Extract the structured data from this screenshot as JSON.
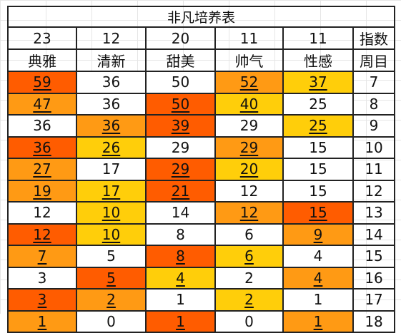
{
  "title": "非凡培养表",
  "colors": {
    "red": "#ff5c00",
    "orange": "#ff9a14",
    "yellow": "#ffce0a",
    "white": "#ffffff"
  },
  "headers": {
    "counts": [
      "23",
      "12",
      "20",
      "11",
      "11"
    ],
    "count_label": "指数",
    "names": [
      "典雅",
      "清新",
      "甜美",
      "帅气",
      "性感"
    ],
    "names_label": "周目"
  },
  "rows": [
    {
      "cells": [
        {
          "v": "59",
          "c": "red",
          "u": true
        },
        {
          "v": "36",
          "c": "white",
          "u": false
        },
        {
          "v": "50",
          "c": "white",
          "u": false
        },
        {
          "v": "52",
          "c": "orange",
          "u": true
        },
        {
          "v": "37",
          "c": "yellow",
          "u": true
        }
      ],
      "week": "7"
    },
    {
      "cells": [
        {
          "v": "47",
          "c": "orange",
          "u": true
        },
        {
          "v": "36",
          "c": "white",
          "u": false
        },
        {
          "v": "50",
          "c": "red",
          "u": true
        },
        {
          "v": "40",
          "c": "yellow",
          "u": true
        },
        {
          "v": "25",
          "c": "white",
          "u": false
        }
      ],
      "week": "8"
    },
    {
      "cells": [
        {
          "v": "36",
          "c": "white",
          "u": false
        },
        {
          "v": "36",
          "c": "orange",
          "u": true
        },
        {
          "v": "39",
          "c": "red",
          "u": true
        },
        {
          "v": "29",
          "c": "white",
          "u": false
        },
        {
          "v": "25",
          "c": "yellow",
          "u": true
        }
      ],
      "week": "9"
    },
    {
      "cells": [
        {
          "v": "36",
          "c": "red",
          "u": true
        },
        {
          "v": "26",
          "c": "yellow",
          "u": true
        },
        {
          "v": "29",
          "c": "white",
          "u": false
        },
        {
          "v": "29",
          "c": "orange",
          "u": true
        },
        {
          "v": "15",
          "c": "white",
          "u": false
        }
      ],
      "week": "10"
    },
    {
      "cells": [
        {
          "v": "27",
          "c": "orange",
          "u": true
        },
        {
          "v": "17",
          "c": "white",
          "u": false
        },
        {
          "v": "29",
          "c": "red",
          "u": true
        },
        {
          "v": "20",
          "c": "yellow",
          "u": true
        },
        {
          "v": "15",
          "c": "white",
          "u": false
        }
      ],
      "week": "11"
    },
    {
      "cells": [
        {
          "v": "19",
          "c": "orange",
          "u": true
        },
        {
          "v": "17",
          "c": "yellow",
          "u": true
        },
        {
          "v": "21",
          "c": "red",
          "u": true
        },
        {
          "v": "12",
          "c": "white",
          "u": false
        },
        {
          "v": "15",
          "c": "white",
          "u": false
        }
      ],
      "week": "12"
    },
    {
      "cells": [
        {
          "v": "12",
          "c": "white",
          "u": false
        },
        {
          "v": "10",
          "c": "yellow",
          "u": true
        },
        {
          "v": "14",
          "c": "white",
          "u": false
        },
        {
          "v": "12",
          "c": "orange",
          "u": true
        },
        {
          "v": "15",
          "c": "red",
          "u": true
        }
      ],
      "week": "13"
    },
    {
      "cells": [
        {
          "v": "12",
          "c": "red",
          "u": true
        },
        {
          "v": "10",
          "c": "yellow",
          "u": true
        },
        {
          "v": "8",
          "c": "white",
          "u": false
        },
        {
          "v": "6",
          "c": "white",
          "u": false
        },
        {
          "v": "9",
          "c": "orange",
          "u": true
        }
      ],
      "week": "14"
    },
    {
      "cells": [
        {
          "v": "7",
          "c": "orange",
          "u": true
        },
        {
          "v": "5",
          "c": "white",
          "u": false
        },
        {
          "v": "8",
          "c": "red",
          "u": true
        },
        {
          "v": "6",
          "c": "yellow",
          "u": true
        },
        {
          "v": "4",
          "c": "white",
          "u": false
        }
      ],
      "week": "15"
    },
    {
      "cells": [
        {
          "v": "3",
          "c": "white",
          "u": false
        },
        {
          "v": "5",
          "c": "red",
          "u": true
        },
        {
          "v": "4",
          "c": "yellow",
          "u": true
        },
        {
          "v": "2",
          "c": "white",
          "u": false
        },
        {
          "v": "4",
          "c": "orange",
          "u": true
        }
      ],
      "week": "16"
    },
    {
      "cells": [
        {
          "v": "3",
          "c": "red",
          "u": true
        },
        {
          "v": "2",
          "c": "orange",
          "u": true
        },
        {
          "v": "1",
          "c": "white",
          "u": false
        },
        {
          "v": "2",
          "c": "yellow",
          "u": true
        },
        {
          "v": "1",
          "c": "white",
          "u": false
        }
      ],
      "week": "17"
    },
    {
      "cells": [
        {
          "v": "1",
          "c": "orange",
          "u": true
        },
        {
          "v": "0",
          "c": "white",
          "u": false
        },
        {
          "v": "1",
          "c": "red",
          "u": true
        },
        {
          "v": "0",
          "c": "white",
          "u": false
        },
        {
          "v": "1",
          "c": "orange",
          "u": true
        }
      ],
      "week": "18"
    }
  ]
}
